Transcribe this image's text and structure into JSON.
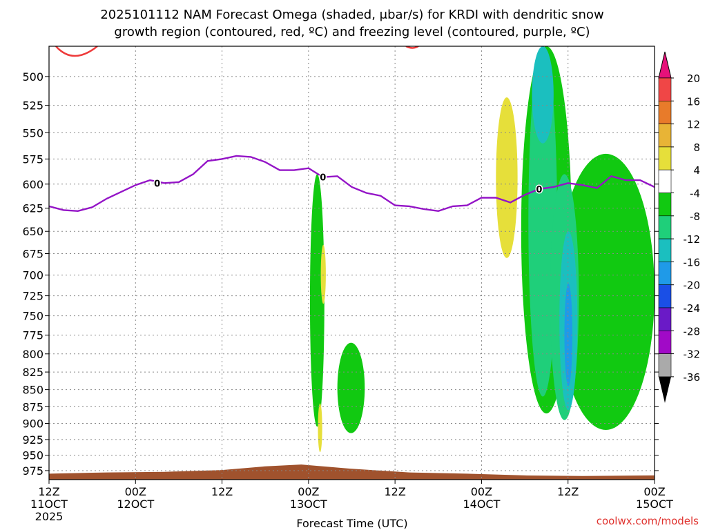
{
  "chart_data": {
    "type": "heatmap",
    "title_lines": [
      "2025101112 NAM Forecast Omega (shaded, μbar/s) for KRDI with dendritic snow",
      "growth region (contoured, red, ºC) and freezing level (contoured, purple, ºC)"
    ],
    "xlabel": "Forecast Time (UTC)",
    "ylabel": "",
    "x_ticks": [
      {
        "top": "12Z",
        "bottom": "11OCT",
        "extra": "2025"
      },
      {
        "top": "00Z",
        "bottom": "12OCT",
        "extra": ""
      },
      {
        "top": "12Z",
        "bottom": "",
        "extra": ""
      },
      {
        "top": "00Z",
        "bottom": "13OCT",
        "extra": ""
      },
      {
        "top": "12Z",
        "bottom": "",
        "extra": ""
      },
      {
        "top": "00Z",
        "bottom": "14OCT",
        "extra": ""
      },
      {
        "top": "12Z",
        "bottom": "",
        "extra": ""
      },
      {
        "top": "00Z",
        "bottom": "15OCT",
        "extra": ""
      }
    ],
    "xlim_hours": [
      0,
      84
    ],
    "y_ticks": [
      500,
      525,
      550,
      575,
      600,
      625,
      650,
      675,
      700,
      725,
      750,
      775,
      800,
      825,
      850,
      875,
      900,
      925,
      950,
      975
    ],
    "ylim_hpa": [
      475,
      990
    ],
    "y_scale": "log-pressure",
    "grid": "dotted",
    "colorbar": {
      "labels": [
        "20",
        "16",
        "12",
        "8",
        "4",
        "-4",
        "-8",
        "-12",
        "-16",
        "-20",
        "-24",
        "-28",
        "-32",
        "-36"
      ],
      "colors": [
        "#f04646",
        "#e87b2a",
        "#e8b436",
        "#e6df3a",
        "#ffffff",
        "#11c911",
        "#1fcf7a",
        "#1bbfbf",
        "#1f9ae8",
        "#1a4fe6",
        "#6a1ac7",
        "#a10ac7",
        "#aaaaaa"
      ],
      "top_arrow_color": "#e6117a",
      "bottom_arrow_color": "#000000"
    },
    "freezing_level": {
      "label": "0",
      "color": "#9414c7",
      "hours": [
        0,
        2,
        4,
        6,
        8,
        10,
        12,
        14,
        16,
        18,
        20,
        22,
        24,
        26,
        28,
        30,
        32,
        34,
        36,
        38,
        40,
        42,
        44,
        46,
        48,
        50,
        52,
        54,
        56,
        58,
        60,
        62,
        64,
        66,
        68,
        70,
        72,
        74,
        76,
        78,
        80,
        82,
        84
      ],
      "hpa": [
        623,
        627,
        628,
        624,
        615,
        608,
        601,
        596,
        599,
        598,
        590,
        577,
        575,
        572,
        573,
        578,
        586,
        586,
        584,
        593,
        592,
        603,
        609,
        612,
        622,
        623,
        626,
        628,
        623,
        622,
        614,
        614,
        619,
        611,
        605,
        603,
        599,
        601,
        604,
        592,
        596,
        596,
        603
      ]
    },
    "dgz_label_color": "#ee3a3a",
    "omega_regions": [
      {
        "level": "-4",
        "color": "#11c911",
        "hours": [
          36.2,
          38.2
        ],
        "hpa": [
          590,
          905
        ]
      },
      {
        "level": "-4",
        "color": "#11c911",
        "hours": [
          40,
          43.8
        ],
        "hpa": [
          785,
          915
        ]
      },
      {
        "level": "-4",
        "color": "#11c911",
        "hours": [
          65.5,
          72.5
        ],
        "hpa": [
          475,
          885
        ]
      },
      {
        "level": "-4",
        "color": "#11c911",
        "hours": [
          70.5,
          84
        ],
        "hpa": [
          570,
          910
        ]
      },
      {
        "level": "-8",
        "color": "#1fcf7a",
        "hours": [
          66.5,
          70.5
        ],
        "hpa": [
          475,
          860
        ]
      },
      {
        "level": "-8",
        "color": "#1fcf7a",
        "hours": [
          69.5,
          73.5
        ],
        "hpa": [
          590,
          895
        ]
      },
      {
        "level": "-12",
        "color": "#1bbfbf",
        "hours": [
          67,
          70
        ],
        "hpa": [
          475,
          560
        ]
      },
      {
        "level": "-12",
        "color": "#1bbfbf",
        "hours": [
          70.8,
          73.3
        ],
        "hpa": [
          650,
          880
        ]
      },
      {
        "level": "-16",
        "color": "#1f9ae8",
        "hours": [
          71.5,
          72.6
        ],
        "hpa": [
          710,
          845
        ]
      },
      {
        "level": "4",
        "color": "#e6df3a",
        "hours": [
          62,
          65
        ],
        "hpa": [
          518,
          680
        ]
      },
      {
        "level": "4",
        "color": "#e6df3a",
        "hours": [
          37.7,
          38.4
        ],
        "hpa": [
          665,
          735
        ]
      },
      {
        "level": "4",
        "color": "#e6df3a",
        "hours": [
          37.3,
          37.9
        ],
        "hpa": [
          870,
          945
        ]
      }
    ],
    "terrain": {
      "color": "#a0522d",
      "hours": [
        0,
        8,
        16,
        24,
        30,
        35,
        42,
        50,
        58,
        66,
        74,
        84
      ],
      "hpa": [
        980,
        978,
        977,
        974,
        968,
        965,
        972,
        978,
        980,
        983,
        984,
        983
      ]
    }
  },
  "credit": "coolwx.com/models"
}
